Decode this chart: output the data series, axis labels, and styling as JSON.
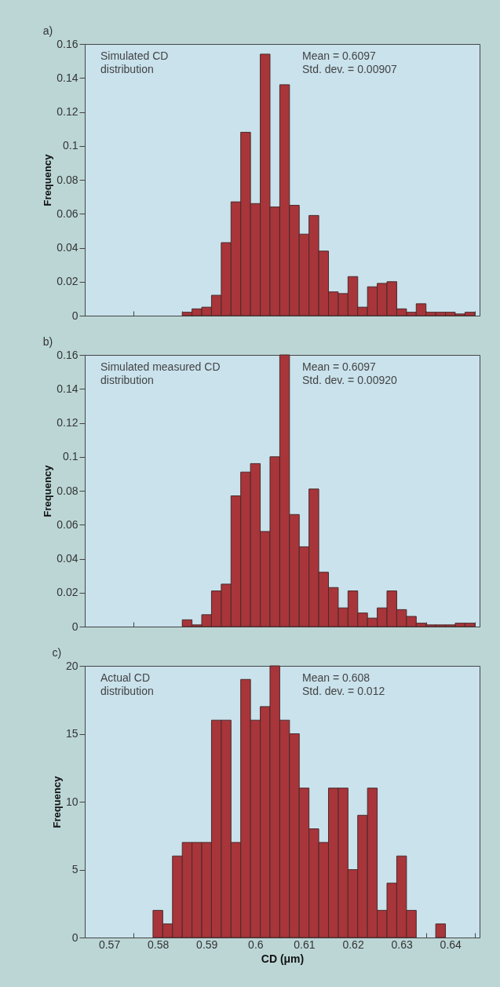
{
  "chart_data": [
    {
      "type": "histogram",
      "title": "a)",
      "ylabel": "Frequency",
      "color": "#a8353a",
      "tick_labels": "y",
      "annotations": [
        "Simulated CD\ndistribution",
        "Mean = 0.6097\nStd. dev. = 0.00907"
      ],
      "bins": [
        0.585,
        0.587,
        0.589,
        0.591,
        0.593,
        0.595,
        0.597,
        0.599,
        0.601,
        0.603,
        0.605,
        0.607,
        0.609,
        0.611,
        0.613,
        0.615,
        0.617,
        0.619,
        0.621,
        0.623,
        0.625,
        0.627,
        0.629,
        0.631,
        0.633,
        0.635,
        0.637,
        0.639,
        0.641,
        0.643,
        0.645
      ],
      "values": [
        0.002,
        0.004,
        0.005,
        0.012,
        0.043,
        0.067,
        0.108,
        0.066,
        0.154,
        0.064,
        0.136,
        0.065,
        0.048,
        0.059,
        0.038,
        0.014,
        0.013,
        0.023,
        0.005,
        0.017,
        0.019,
        0.02,
        0.004,
        0.002,
        0.007,
        0.002,
        0.002,
        0.002,
        0.001,
        0.002
      ],
      "xlim": [
        0.565,
        0.646
      ],
      "ylim": [
        0,
        0.16
      ],
      "xticks": [
        0.57,
        0.58,
        0.59,
        0.6,
        0.61,
        0.62,
        0.63,
        0.64,
        {
          "value": 0.575,
          "label": null
        },
        {
          "value": 0.585,
          "label": null
        },
        {
          "value": 0.595,
          "label": null
        },
        {
          "value": 0.605,
          "label": null
        },
        {
          "value": 0.615,
          "label": null
        },
        {
          "value": 0.625,
          "label": null
        },
        {
          "value": 0.635,
          "label": null
        },
        {
          "value": 0.645,
          "label": null
        }
      ],
      "yticks": [
        0,
        0.02,
        0.04,
        0.06,
        0.08,
        0.1,
        0.12,
        0.14,
        0.16
      ]
    },
    {
      "type": "histogram",
      "title": "b)",
      "ylabel": "Frequency",
      "color": "#a8353a",
      "tick_labels": "y",
      "annotations": [
        "Simulated measured CD\ndistribution",
        "Mean = 0.6097\nStd. dev. = 0.00920"
      ],
      "bins": [
        0.585,
        0.587,
        0.589,
        0.591,
        0.593,
        0.595,
        0.597,
        0.599,
        0.601,
        0.603,
        0.605,
        0.607,
        0.609,
        0.611,
        0.613,
        0.615,
        0.617,
        0.619,
        0.621,
        0.623,
        0.625,
        0.627,
        0.629,
        0.631,
        0.633,
        0.635,
        0.637,
        0.639,
        0.641,
        0.643,
        0.645
      ],
      "values": [
        0.004,
        0.001,
        0.007,
        0.021,
        0.025,
        0.077,
        0.091,
        0.096,
        0.056,
        0.1,
        0.16,
        0.066,
        0.047,
        0.081,
        0.032,
        0.023,
        0.011,
        0.021,
        0.008,
        0.005,
        0.011,
        0.021,
        0.01,
        0.006,
        0.002,
        0.001,
        0.001,
        0.001,
        0.002,
        0.002
      ],
      "xlim": [
        0.565,
        0.646
      ],
      "ylim": [
        0,
        0.16
      ],
      "xticks": [
        0.57,
        0.58,
        0.59,
        0.6,
        0.61,
        0.62,
        0.63,
        0.64,
        {
          "value": 0.575,
          "label": null
        },
        {
          "value": 0.585,
          "label": null
        },
        {
          "value": 0.595,
          "label": null
        },
        {
          "value": 0.605,
          "label": null
        },
        {
          "value": 0.615,
          "label": null
        },
        {
          "value": 0.625,
          "label": null
        },
        {
          "value": 0.635,
          "label": null
        },
        {
          "value": 0.645,
          "label": null
        }
      ],
      "yticks": [
        0,
        0.02,
        0.04,
        0.06,
        0.08,
        0.1,
        0.12,
        0.14,
        0.16
      ]
    },
    {
      "type": "histogram",
      "title": "c)",
      "xlabel": "CD (μm)",
      "ylabel": "Frequency",
      "color": "#a8353a",
      "annotations": [
        "Actual CD\ndistribution",
        "Mean = 0.608\nStd. dev. = 0.012"
      ],
      "bins": [
        0.579,
        0.581,
        0.583,
        0.585,
        0.587,
        0.589,
        0.591,
        0.593,
        0.595,
        0.597,
        0.599,
        0.601,
        0.603,
        0.605,
        0.607,
        0.609,
        0.611,
        0.613,
        0.615,
        0.617,
        0.619,
        0.621,
        0.623,
        0.625,
        0.627,
        0.629,
        0.631,
        0.633,
        0.635,
        0.637,
        0.639
      ],
      "values": [
        2,
        1,
        6,
        7,
        7,
        7,
        16,
        16,
        7,
        19,
        16,
        17,
        20,
        16,
        15,
        11,
        8,
        7,
        11,
        11,
        5,
        9,
        11,
        2,
        4,
        6,
        2,
        0,
        0,
        1
      ],
      "xlim": [
        0.565,
        0.646
      ],
      "ylim": [
        0,
        20
      ],
      "xticks": [
        0.57,
        0.58,
        0.59,
        0.6,
        0.61,
        0.62,
        0.63,
        0.64,
        {
          "value": 0.575,
          "label": null
        },
        {
          "value": 0.585,
          "label": null
        },
        {
          "value": 0.595,
          "label": null
        },
        {
          "value": 0.605,
          "label": null
        },
        {
          "value": 0.615,
          "label": null
        },
        {
          "value": 0.625,
          "label": null
        },
        {
          "value": 0.635,
          "label": null
        },
        {
          "value": 0.645,
          "label": null
        }
      ],
      "yticks": [
        0,
        5,
        10,
        15,
        20
      ]
    }
  ]
}
